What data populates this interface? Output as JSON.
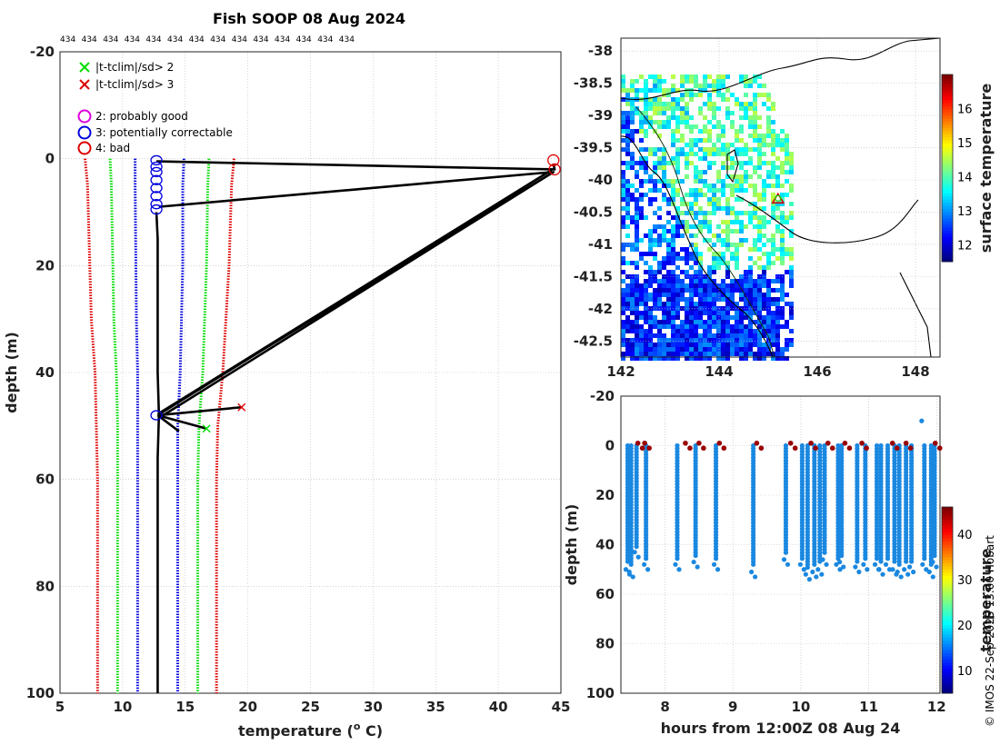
{
  "title": "Fish SOOP 08 Aug 2024",
  "copyright": "© IMOS 22-Sep-2025 13:00 Hobart",
  "counts": [
    "434",
    "434",
    "434",
    "434",
    "434",
    "434",
    "434",
    "434",
    "434",
    "434",
    "434",
    "434",
    "434",
    "434"
  ],
  "colors": {
    "green": "#00dd00",
    "red": "#dd0000",
    "blue": "#0000dd",
    "magenta": "#dd00dd",
    "black": "#000000",
    "grid": "#bbbbbb",
    "point": "#1a88e0",
    "flag": "#9a0000"
  },
  "chart_data": [
    {
      "type": "line",
      "name": "profile",
      "xlabel": "temperature (",
      "xlabel_sup": "o",
      "xlabel_tail": " C)",
      "ylabel": "depth (m)",
      "xlim": [
        5,
        45
      ],
      "ylim": [
        -20,
        100
      ],
      "xticks": [
        5,
        10,
        15,
        20,
        25,
        30,
        35,
        40,
        45
      ],
      "yticks": [
        -20,
        0,
        20,
        40,
        60,
        80,
        100
      ],
      "legend": [
        {
          "marker": "x",
          "color": "green",
          "label": "|t-tclim|/sd> 2"
        },
        {
          "marker": "x",
          "color": "red",
          "label": "|t-tclim|/sd> 3"
        },
        {
          "marker": "o",
          "color": "magenta",
          "label": "2: probably good"
        },
        {
          "marker": "o",
          "color": "blue",
          "label": "3: potentially correctable"
        },
        {
          "marker": "o",
          "color": "red",
          "label": "4: bad"
        }
      ],
      "clim_series": [
        {
          "name": "red-left",
          "color": "red",
          "depth": [
            0,
            5,
            30,
            40,
            50,
            60,
            100
          ],
          "temp": [
            7.0,
            7.2,
            7.5,
            7.8,
            7.9,
            8.0,
            8.0
          ]
        },
        {
          "name": "green-left",
          "color": "green",
          "depth": [
            0,
            5,
            30,
            40,
            50,
            60,
            100
          ],
          "temp": [
            9.0,
            9.1,
            9.3,
            9.5,
            9.6,
            9.6,
            9.6
          ]
        },
        {
          "name": "blue-left",
          "color": "blue",
          "depth": [
            0,
            5,
            30,
            40,
            50,
            60,
            100
          ],
          "temp": [
            11.0,
            11.0,
            11.1,
            11.2,
            11.2,
            11.2,
            11.2
          ]
        },
        {
          "name": "blue-right",
          "color": "blue",
          "depth": [
            0,
            5,
            20,
            40,
            50,
            60,
            100
          ],
          "temp": [
            14.9,
            14.8,
            14.8,
            14.6,
            14.4,
            14.4,
            14.4
          ]
        },
        {
          "name": "green-right",
          "color": "green",
          "depth": [
            0,
            5,
            20,
            40,
            50,
            60,
            100
          ],
          "temp": [
            16.9,
            16.8,
            16.7,
            16.4,
            16.1,
            16.0,
            16.0
          ]
        },
        {
          "name": "red-right",
          "color": "red",
          "depth": [
            0,
            5,
            20,
            40,
            50,
            60,
            100
          ],
          "temp": [
            18.9,
            18.7,
            18.5,
            18.0,
            17.6,
            17.5,
            17.5
          ]
        }
      ],
      "profile_lines": [
        {
          "depth": [
            10,
            15,
            25,
            40,
            48,
            56,
            100
          ],
          "temp": [
            12.7,
            12.8,
            12.8,
            12.8,
            12.9,
            12.8,
            12.8
          ]
        },
        {
          "depth": [
            0.5,
            2,
            1
          ],
          "temp": [
            12.7,
            44.5,
            44.4
          ]
        },
        {
          "depth": [
            9,
            2.5
          ],
          "temp": [
            12.9,
            44.3
          ]
        },
        {
          "depth": [
            48,
            2.2,
            47.5,
            2.5,
            48.5
          ],
          "temp": [
            12.8,
            44.2,
            13.0,
            44.4,
            12.9
          ]
        },
        {
          "depth": [
            48,
            46.5
          ],
          "temp": [
            12.8,
            19.5
          ]
        },
        {
          "depth": [
            48,
            50.5
          ],
          "temp": [
            12.8,
            16.7
          ]
        },
        {
          "depth": [
            48,
            51
          ],
          "temp": [
            12.8,
            14.5
          ]
        }
      ],
      "blue_circles": [
        {
          "depth": 0.3,
          "temp": 12.7
        },
        {
          "depth": 1.5,
          "temp": 12.7
        },
        {
          "depth": 2.5,
          "temp": 12.7
        },
        {
          "depth": 4,
          "temp": 12.7
        },
        {
          "depth": 5.5,
          "temp": 12.7
        },
        {
          "depth": 7,
          "temp": 12.7
        },
        {
          "depth": 8.5,
          "temp": 12.7
        },
        {
          "depth": 9.5,
          "temp": 12.7
        },
        {
          "depth": 48,
          "temp": 12.7
        }
      ],
      "red_circles": [
        {
          "depth": 0.3,
          "temp": 44.4
        },
        {
          "depth": 2,
          "temp": 44.5
        }
      ],
      "crosses": [
        {
          "depth": 46.5,
          "temp": 19.5,
          "color": "red"
        },
        {
          "depth": 50.5,
          "temp": 16.7,
          "color": "green"
        }
      ]
    },
    {
      "type": "heatmap",
      "name": "map",
      "xlim": [
        142,
        148.5
      ],
      "ylim": [
        -42.75,
        -37.8
      ],
      "xticks": [
        142,
        144,
        146,
        148
      ],
      "yticks": [
        -38,
        -38.5,
        -39,
        -39.5,
        -40,
        -40.5,
        -41,
        -41.5,
        -42,
        -42.5
      ],
      "colorbar_label": "surface temperature",
      "colorbar_range": [
        11.5,
        17
      ],
      "colorbar_ticks": [
        12,
        13,
        14,
        15,
        16
      ],
      "marker": {
        "lon": 145.2,
        "lat": -40.3
      }
    },
    {
      "type": "scatter",
      "name": "section",
      "xlabel": "hours from 12:00Z 08 Aug 24",
      "ylabel": "depth (m)",
      "xlim": [
        7.35,
        12.05
      ],
      "ylim": [
        -20,
        100
      ],
      "xticks": [
        8,
        9,
        10,
        11,
        12
      ],
      "yticks": [
        -20,
        0,
        20,
        40,
        60,
        80,
        100
      ],
      "colorbar_label": "temperature",
      "colorbar_range": [
        5,
        46
      ],
      "colorbar_ticks": [
        10,
        20,
        30,
        40
      ],
      "profiles": [
        {
          "hour": 7.45,
          "max_depth": 52
        },
        {
          "hour": 7.5,
          "max_depth": 53
        },
        {
          "hour": 7.58,
          "max_depth": 45
        },
        {
          "hour": 7.72,
          "max_depth": 50
        },
        {
          "hour": 8.18,
          "max_depth": 50
        },
        {
          "hour": 8.45,
          "max_depth": 49
        },
        {
          "hour": 8.75,
          "max_depth": 50
        },
        {
          "hour": 9.3,
          "max_depth": 53
        },
        {
          "hour": 9.78,
          "max_depth": 48
        },
        {
          "hour": 10.02,
          "max_depth": 50
        },
        {
          "hour": 10.1,
          "max_depth": 54
        },
        {
          "hour": 10.2,
          "max_depth": 53
        },
        {
          "hour": 10.28,
          "max_depth": 52
        },
        {
          "hour": 10.35,
          "max_depth": 48
        },
        {
          "hour": 10.55,
          "max_depth": 50
        },
        {
          "hour": 10.6,
          "max_depth": 49
        },
        {
          "hour": 10.83,
          "max_depth": 51
        },
        {
          "hour": 10.95,
          "max_depth": 50
        },
        {
          "hour": 11.12,
          "max_depth": 50
        },
        {
          "hour": 11.18,
          "max_depth": 52
        },
        {
          "hour": 11.28,
          "max_depth": 50
        },
        {
          "hour": 11.38,
          "max_depth": 52
        },
        {
          "hour": 11.45,
          "max_depth": 53
        },
        {
          "hour": 11.55,
          "max_depth": 52
        },
        {
          "hour": 11.63,
          "max_depth": 51
        },
        {
          "hour": 11.82,
          "max_depth": 50
        },
        {
          "hour": 11.92,
          "max_depth": 53
        },
        {
          "hour": 11.97,
          "max_depth": 49
        }
      ],
      "spikes": [
        {
          "hour": 11.78,
          "depth": -10
        }
      ],
      "flags": [
        {
          "hour": 7.6,
          "depth": -1
        },
        {
          "hour": 7.7,
          "depth": -1
        },
        {
          "hour": 8.3,
          "depth": -1
        },
        {
          "hour": 8.5,
          "depth": -1
        },
        {
          "hour": 8.8,
          "depth": -1
        },
        {
          "hour": 9.35,
          "depth": -1
        },
        {
          "hour": 9.85,
          "depth": -1
        },
        {
          "hour": 10.15,
          "depth": -1
        },
        {
          "hour": 10.4,
          "depth": -1
        },
        {
          "hour": 10.65,
          "depth": -1
        },
        {
          "hour": 10.9,
          "depth": -1
        },
        {
          "hour": 11.35,
          "depth": -1
        },
        {
          "hour": 11.55,
          "depth": -1
        },
        {
          "hour": 11.98,
          "depth": -1
        }
      ]
    }
  ]
}
